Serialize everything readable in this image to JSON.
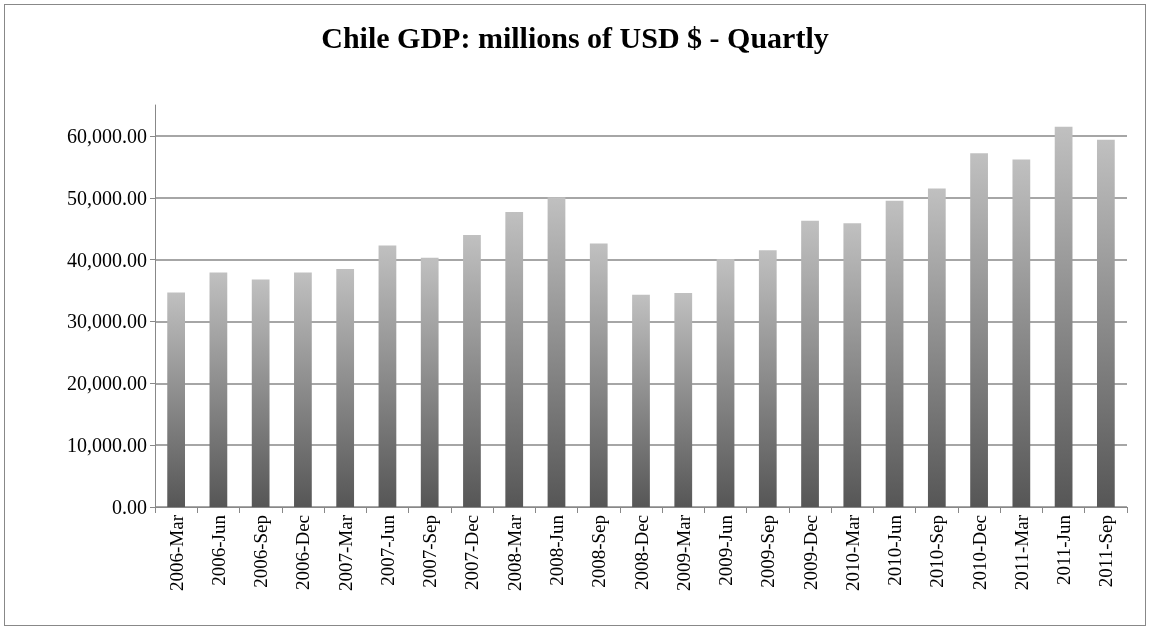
{
  "chart_data": {
    "type": "bar",
    "title": "Chile GDP: millions of USD $ - Quartly",
    "categories": [
      "2006-Mar",
      "2006-Jun",
      "2006-Sep",
      "2006-Dec",
      "2007-Mar",
      "2007-Jun",
      "2007-Sep",
      "2007-Dec",
      "2008-Mar",
      "2008-Jun",
      "2008-Sep",
      "2008-Dec",
      "2009-Mar",
      "2009-Jun",
      "2009-Sep",
      "2009-Dec",
      "2010-Mar",
      "2010-Jun",
      "2010-Sep",
      "2010-Dec",
      "2011-Mar",
      "2011-Jun",
      "2011-Sep"
    ],
    "values": [
      34700,
      37900,
      36800,
      37900,
      38500,
      42300,
      40300,
      44000,
      47700,
      50100,
      42600,
      34300,
      34600,
      40100,
      41500,
      46300,
      45900,
      49500,
      51500,
      57200,
      56200,
      61500,
      59400
    ],
    "color": "#c0c0c0",
    "ylim": [
      0,
      65000
    ],
    "yticks": [
      {
        "value": 0,
        "label": "0.00"
      },
      {
        "value": 10000,
        "label": "10,000.00"
      },
      {
        "value": 20000,
        "label": "20,000.00"
      },
      {
        "value": 30000,
        "label": "30,000.00"
      },
      {
        "value": 40000,
        "label": "40,000.00"
      },
      {
        "value": 50000,
        "label": "50,000.00"
      },
      {
        "value": 60000,
        "label": "60,000.00"
      }
    ],
    "grid": "y"
  }
}
